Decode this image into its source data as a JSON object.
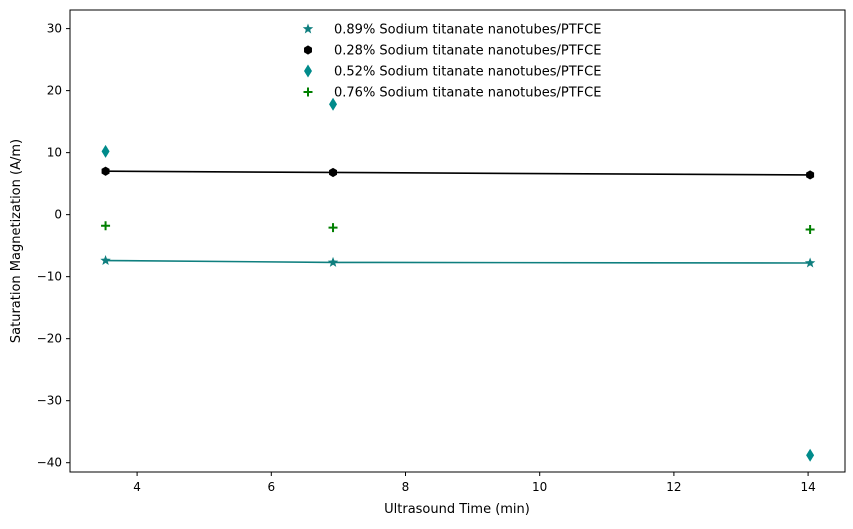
{
  "chart_data": {
    "type": "scatter",
    "title": "",
    "xlabel": "Ultrasound Time (min)",
    "ylabel": "Saturation Magnetization (A/m)",
    "xlim": [
      3.0,
      14.55
    ],
    "ylim": [
      -41.5,
      33.0
    ],
    "xticks": [
      4,
      6,
      8,
      10,
      12,
      14
    ],
    "yticks": [
      -40,
      -30,
      -20,
      -10,
      0,
      10,
      20,
      30
    ],
    "grid": false,
    "legend_position": "top-center",
    "series": [
      {
        "name": "0.89% Sodium titanate nanotubes/PTFCE",
        "marker": "star",
        "color": "#0f7f7f",
        "line": true,
        "x": [
          3.53,
          6.92,
          14.03
        ],
        "y": [
          -7.4,
          -7.7,
          -7.8
        ]
      },
      {
        "name": "0.28% Sodium titanate nanotubes/PTFCE",
        "marker": "hexagon",
        "color": "#000000",
        "line": true,
        "x": [
          3.53,
          6.92,
          14.03
        ],
        "y": [
          7.0,
          6.8,
          6.4
        ]
      },
      {
        "name": "0.52% Sodium titanate nanotubes/PTFCE",
        "marker": "thin-diamond",
        "color": "#008b8b",
        "line": false,
        "x": [
          3.53,
          6.92,
          14.03
        ],
        "y": [
          10.2,
          17.8,
          -38.8
        ]
      },
      {
        "name": "0.76% Sodium titanate nanotubes/PTFCE",
        "marker": "plus",
        "color": "#007f00",
        "line": false,
        "x": [
          3.53,
          6.92,
          14.03
        ],
        "y": [
          -1.8,
          -2.1,
          -2.4
        ]
      }
    ]
  }
}
